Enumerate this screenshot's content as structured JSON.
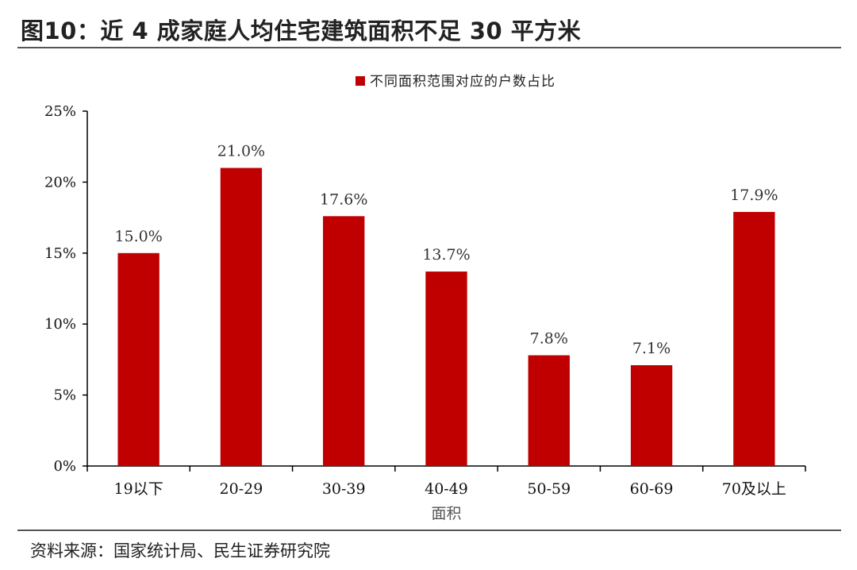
{
  "title": "图10：近 4 成家庭人均住宅建筑面积不足 30 平方米",
  "source": "资料来源：国家统计局、民生证券研究院",
  "colors": {
    "bar": "#C00000",
    "axis": "#000000"
  },
  "chart_data": {
    "type": "bar",
    "categories": [
      "19以下",
      "20-29",
      "30-39",
      "40-49",
      "50-59",
      "60-69",
      "70及以上"
    ],
    "series": [
      {
        "name": "不同面积范围对应的户数占比",
        "values": [
          15.0,
          21.0,
          17.6,
          13.7,
          7.8,
          7.1,
          17.9
        ]
      }
    ],
    "data_labels": [
      "15.0%",
      "21.0%",
      "17.6%",
      "13.7%",
      "7.8%",
      "7.1%",
      "17.9%"
    ],
    "xlabel": "面积",
    "ylabel": "",
    "ylim": [
      0,
      25
    ],
    "yticks": [
      0,
      5,
      10,
      15,
      20,
      25
    ],
    "ytick_labels": [
      "0%",
      "5%",
      "10%",
      "15%",
      "20%",
      "25%"
    ],
    "grid": false,
    "legend_position": "top-center"
  }
}
